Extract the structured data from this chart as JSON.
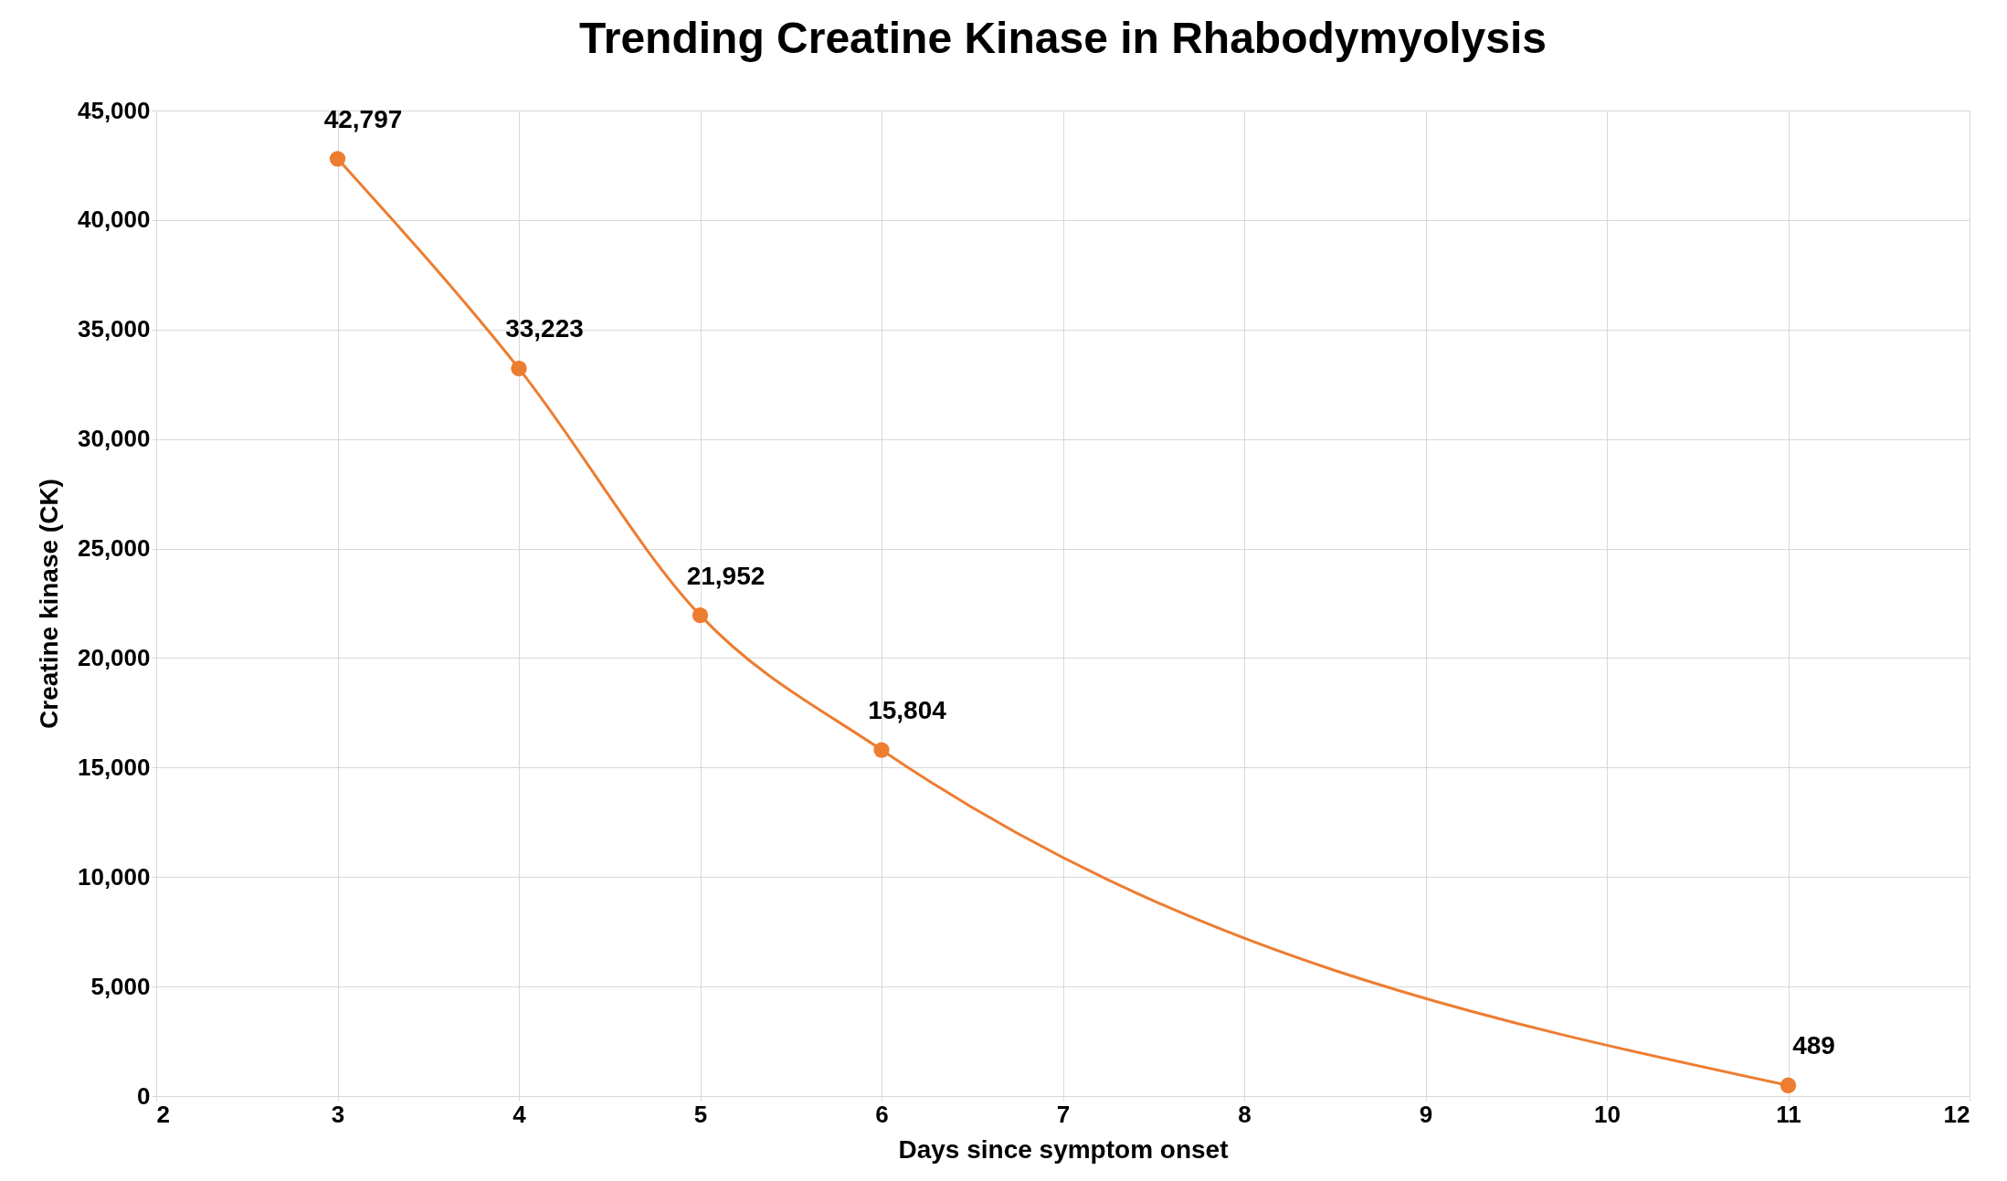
{
  "chart_data": {
    "type": "line",
    "title": "Trending Creatine Kinase in Rhabodymyolysis",
    "xlabel": "Days since symptom onset",
    "ylabel": "Creatine kinase (CK)",
    "x": [
      3,
      4,
      5,
      6,
      11
    ],
    "series": [
      {
        "color": "#ed7d31",
        "values": [
          42797,
          33223,
          21952,
          15804,
          489
        ],
        "value_labels": [
          "42,797",
          "33,223",
          "21,952",
          "15,804",
          "489"
        ]
      }
    ],
    "xlim": [
      2,
      12
    ],
    "xticks": [
      2,
      3,
      4,
      5,
      6,
      7,
      8,
      9,
      10,
      11,
      12
    ],
    "ylim": [
      0,
      45000
    ],
    "yticks": [
      0,
      {
        "value": 5000,
        "label": "5,000"
      },
      {
        "value": 10000,
        "label": "10,000"
      },
      {
        "value": 15000,
        "label": "15,000"
      },
      {
        "value": 20000,
        "label": "20,000"
      },
      {
        "value": 25000,
        "label": "25,000"
      },
      {
        "value": 30000,
        "label": "30,000"
      },
      {
        "value": 35000,
        "label": "35,000"
      },
      {
        "value": 40000,
        "label": "40,000"
      },
      {
        "value": 45000,
        "label": "45,000"
      }
    ],
    "grid": true,
    "marker": "circle",
    "line_style": "solid"
  }
}
